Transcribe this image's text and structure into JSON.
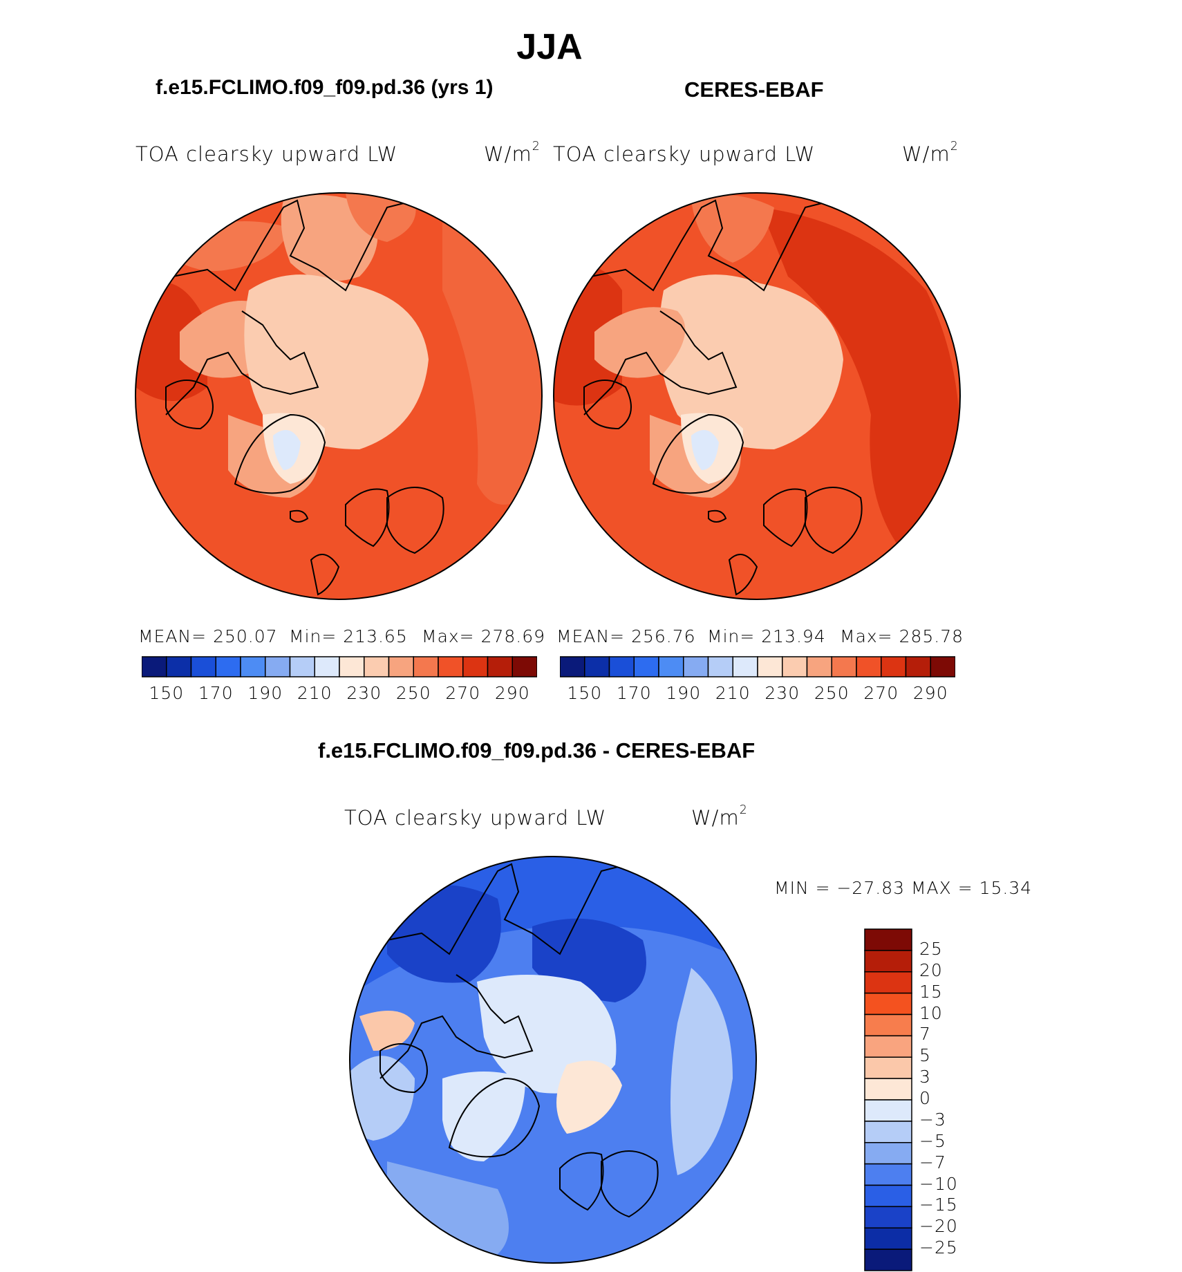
{
  "title": "JJA",
  "left_panel": {
    "header": "f.e15.FCLIMO.f09_f09.pd.36 (yrs 1)",
    "variable": "TOA clearsky upward LW",
    "units_base": "W/m",
    "units_exp": "2",
    "stats": {
      "mean": "MEAN= 250.07",
      "min": "Min= 213.65",
      "max": "Max= 278.69"
    }
  },
  "right_panel": {
    "header": "CERES-EBAF",
    "variable": "TOA clearsky upward LW",
    "units_base": "W/m",
    "units_exp": "2",
    "stats": {
      "mean": "MEAN= 256.76",
      "min": "Min= 213.94",
      "max": "Max= 285.78"
    }
  },
  "diff_panel": {
    "header": "f.e15.FCLIMO.f09_f09.pd.36 - CERES-EBAF",
    "variable": "TOA clearsky upward LW",
    "units_base": "W/m",
    "units_exp": "2",
    "minmax": "MIN = −27.83 MAX =  15.34"
  },
  "chart_data": [
    {
      "type": "heatmap",
      "title": "f.e15.FCLIMO.f09_f09.pd.36 (yrs 1)",
      "projection": "polar stereographic, north pole",
      "variable": "TOA clearsky upward LW",
      "units": "W/m2",
      "mean": 250.07,
      "min": 213.65,
      "max": 278.69,
      "colorbar_levels": [
        150,
        160,
        170,
        180,
        190,
        200,
        210,
        220,
        230,
        240,
        250,
        260,
        270,
        280,
        290
      ],
      "colorbar_tick_labels": [
        "150",
        "170",
        "190",
        "210",
        "230",
        "250",
        "270",
        "290"
      ],
      "colorbar_colors": [
        "#0a1a7a",
        "#0c2fa8",
        "#1a4fd8",
        "#2d6cf0",
        "#4d8cf4",
        "#86abf2",
        "#b5cdf7",
        "#dde9fb",
        "#fde7d6",
        "#fbccb0",
        "#f7a47f",
        "#f4784e",
        "#f05228",
        "#dc3412",
        "#b51e09",
        "#7d0a05"
      ]
    },
    {
      "type": "heatmap",
      "title": "CERES-EBAF",
      "projection": "polar stereographic, north pole",
      "variable": "TOA clearsky upward LW",
      "units": "W/m2",
      "mean": 256.76,
      "min": 213.94,
      "max": 285.78,
      "colorbar_levels": [
        150,
        160,
        170,
        180,
        190,
        200,
        210,
        220,
        230,
        240,
        250,
        260,
        270,
        280,
        290
      ],
      "colorbar_tick_labels": [
        "150",
        "170",
        "190",
        "210",
        "230",
        "250",
        "270",
        "290"
      ],
      "colorbar_colors": [
        "#0a1a7a",
        "#0c2fa8",
        "#1a4fd8",
        "#2d6cf0",
        "#4d8cf4",
        "#86abf2",
        "#b5cdf7",
        "#dde9fb",
        "#fde7d6",
        "#fbccb0",
        "#f7a47f",
        "#f4784e",
        "#f05228",
        "#dc3412",
        "#b51e09",
        "#7d0a05"
      ]
    },
    {
      "type": "heatmap",
      "title": "f.e15.FCLIMO.f09_f09.pd.36 - CERES-EBAF",
      "projection": "polar stereographic, north pole",
      "variable": "TOA clearsky upward LW",
      "units": "W/m2",
      "min": -27.83,
      "max": 15.34,
      "colorbar_levels": [
        -25,
        -20,
        -15,
        -10,
        -7,
        -5,
        -3,
        0,
        3,
        5,
        7,
        10,
        15,
        20,
        25
      ],
      "colorbar_tick_labels": [
        "25",
        "20",
        "15",
        "10",
        "7",
        "5",
        "3",
        "0",
        "−3",
        "−5",
        "−7",
        "−10",
        "−15",
        "−20",
        "−25"
      ],
      "colorbar_colors": [
        "#7d0a05",
        "#b51e09",
        "#dc3412",
        "#f4521f",
        "#f77d4d",
        "#f9a47f",
        "#fbc8aa",
        "#fde7d6",
        "#dde9fb",
        "#b5cdf7",
        "#86abf2",
        "#4d7ff0",
        "#2a5fe6",
        "#1a42c8",
        "#0c2da6",
        "#0a1a7a"
      ]
    }
  ]
}
